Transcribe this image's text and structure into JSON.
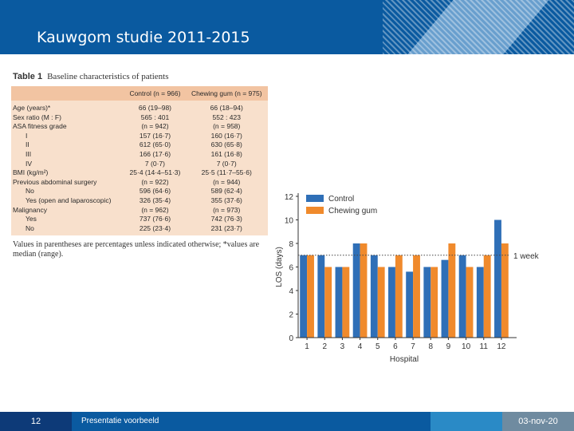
{
  "slide": {
    "title": "Kauwgom studie 2011-2015",
    "page_number": "12",
    "footer_text": "Presentatie voorbeeld",
    "date": "03-nov-20"
  },
  "table": {
    "label": "Table 1",
    "caption": "Baseline characteristics of patients",
    "headers": [
      "",
      "Control (n = 966)",
      "Chewing gum (n = 975)"
    ],
    "rows": [
      {
        "label": "Age (years)*",
        "control": "66 (19–98)",
        "gum": "66 (18–94)",
        "indent": false
      },
      {
        "label": "Sex ratio (M : F)",
        "control": "565 : 401",
        "gum": "552 : 423",
        "indent": false
      },
      {
        "label": "ASA fitness grade",
        "control": "(n = 942)",
        "gum": "(n = 958)",
        "indent": false
      },
      {
        "label": "I",
        "control": "157 (16·7)",
        "gum": "160 (16·7)",
        "indent": true
      },
      {
        "label": "II",
        "control": "612 (65·0)",
        "gum": "630 (65·8)",
        "indent": true
      },
      {
        "label": "III",
        "control": "166 (17·6)",
        "gum": "161 (16·8)",
        "indent": true
      },
      {
        "label": "IV",
        "control": "7 (0·7)",
        "gum": "7 (0·7)",
        "indent": true
      },
      {
        "label": "BMI (kg/m²)",
        "control": "25·4 (14·4–51·3)",
        "gum": "25·5 (11·7–55·6)",
        "indent": false
      },
      {
        "label": "Previous abdominal surgery",
        "control": "(n = 922)",
        "gum": "(n = 944)",
        "indent": false
      },
      {
        "label": "No",
        "control": "596 (64·6)",
        "gum": "589 (62·4)",
        "indent": true
      },
      {
        "label": "Yes (open and laparoscopic)",
        "control": "326 (35·4)",
        "gum": "355 (37·6)",
        "indent": true
      },
      {
        "label": "Malignancy",
        "control": "(n = 962)",
        "gum": "(n = 973)",
        "indent": false
      },
      {
        "label": "Yes",
        "control": "737 (76·6)",
        "gum": "742 (76·3)",
        "indent": true
      },
      {
        "label": "No",
        "control": "225 (23·4)",
        "gum": "231 (23·7)",
        "indent": true
      }
    ],
    "footnote": "Values in parentheses are percentages unless indicated otherwise; *values are median (range)."
  },
  "chart_data": {
    "type": "bar",
    "categories": [
      "1",
      "2",
      "3",
      "4",
      "5",
      "6",
      "7",
      "8",
      "9",
      "10",
      "11",
      "12"
    ],
    "series": [
      {
        "name": "Control",
        "color": "#2f6fb7",
        "values": [
          7,
          7,
          6,
          8,
          7,
          6,
          5.6,
          6,
          6.6,
          7,
          6,
          10
        ]
      },
      {
        "name": "Chewing gum",
        "color": "#f08a2c",
        "values": [
          7,
          6,
          6,
          8,
          6,
          7,
          7,
          6,
          8,
          6,
          7,
          8
        ]
      }
    ],
    "xlabel": "Hospital",
    "ylabel": "LOS (days)",
    "ylim": [
      0,
      12
    ],
    "yticks": [
      "0",
      "2",
      "4",
      "6",
      "8",
      "10",
      "12"
    ],
    "reference_line": {
      "value": 7,
      "label": "1 week",
      "style": "dotted"
    },
    "legend_position": "top-left",
    "grid": false
  }
}
